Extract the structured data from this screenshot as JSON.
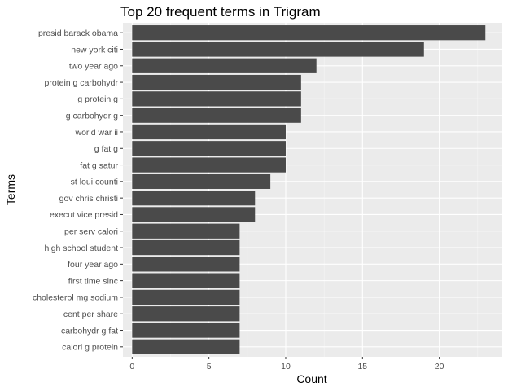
{
  "chart_data": {
    "type": "bar",
    "orientation": "horizontal",
    "title": "Top 20 frequent terms in Trigram",
    "xlabel": "Count",
    "ylabel": "Terms",
    "xlim": [
      0,
      24
    ],
    "xticks": [
      0,
      5,
      10,
      15,
      20
    ],
    "grid": true,
    "legend": "none",
    "categories": [
      "presid barack obama",
      "new york citi",
      "two year ago",
      "protein g carbohydr",
      "g protein g",
      "g carbohydr g",
      "world war ii",
      "g fat g",
      "fat g satur",
      "st loui counti",
      "gov chris christi",
      "execut vice presid",
      "per serv calori",
      "high school student",
      "four year ago",
      "first time sinc",
      "cholesterol mg sodium",
      "cent per share",
      "carbohydr g fat",
      "calori g protein"
    ],
    "values": [
      23,
      19,
      12,
      11,
      11,
      11,
      10,
      10,
      10,
      9,
      8,
      8,
      7,
      7,
      7,
      7,
      7,
      7,
      7,
      7
    ],
    "colors": {
      "bar": "#4a4a4a",
      "panel": "#ebebeb",
      "grid_major": "#ffffff",
      "grid_minor": "#f5f5f5",
      "tick_text": "#4d4d4d",
      "tick_mark": "#333333"
    }
  }
}
